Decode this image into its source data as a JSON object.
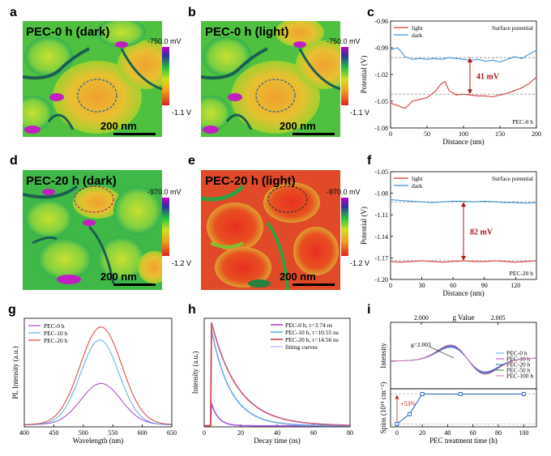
{
  "figure": {
    "panel_labels": [
      "a",
      "b",
      "c",
      "d",
      "e",
      "f",
      "g",
      "h",
      "i"
    ],
    "afm_panels": {
      "a": {
        "title": "PEC-0 h (dark)",
        "scale": "200 nm",
        "cb_max": "-750.0 mV",
        "cb_min": "-1.1 V"
      },
      "b": {
        "title": "PEC-0 h (light)",
        "scale": "200 nm",
        "cb_max": "-750.0 mV",
        "cb_min": "-1.1 V"
      },
      "d": {
        "title": "PEC-20 h (dark)",
        "scale": "200 nm",
        "cb_max": "-970.0 mV",
        "cb_min": "-1.2 V"
      },
      "e": {
        "title": "PEC-20 h (light)",
        "scale": "200 nm",
        "cb_max": "-970.0 mV",
        "cb_min": "-1.2 V"
      }
    }
  },
  "colors": {
    "light": "#d9383a",
    "dark": "#3f94d6",
    "pec0": "#b040d0",
    "pec10": "#58b0e0",
    "pec20": "#d94040",
    "pec50": "#2a9a3a",
    "pec100": "#e070c0",
    "fit": "#9090ff",
    "marker": "#2060c0",
    "arrow": "#b01818",
    "annot": "#c02020"
  },
  "chart_data": [
    {
      "id": "c",
      "type": "line",
      "title": "Surface potential",
      "corner_label": "PEC-0 h",
      "xlabel": "Distance (nm)",
      "ylabel": "Potential (V)",
      "xlim": [
        0,
        200
      ],
      "ylim": [
        -1.08,
        -0.96
      ],
      "xticks": [
        "0",
        "50",
        "100",
        "150",
        "200"
      ],
      "yticks": [
        "-0.96",
        "-0.99",
        "-1.02",
        "-1.05",
        "-1.08"
      ],
      "annotation": "41 mV",
      "ref_lines": [
        -1.001,
        -1.042
      ],
      "series": [
        {
          "name": "light",
          "x": [
            0,
            10,
            20,
            30,
            40,
            50,
            60,
            70,
            75,
            80,
            90,
            100,
            110,
            120,
            130,
            140,
            150,
            160,
            170,
            180,
            190,
            200
          ],
          "y": [
            -1.052,
            -1.055,
            -1.058,
            -1.05,
            -1.048,
            -1.046,
            -1.04,
            -1.03,
            -1.028,
            -1.038,
            -1.043,
            -1.042,
            -1.043,
            -1.044,
            -1.044,
            -1.045,
            -1.043,
            -1.041,
            -1.038,
            -1.035,
            -1.03,
            -1.023
          ]
        },
        {
          "name": "dark",
          "x": [
            0,
            10,
            20,
            30,
            40,
            50,
            60,
            70,
            80,
            90,
            100,
            110,
            120,
            130,
            140,
            150,
            160,
            170,
            180,
            190,
            200
          ],
          "y": [
            -0.992,
            -0.99,
            -1.0,
            -1.003,
            -1.002,
            -1.003,
            -1.002,
            -1.003,
            -1.001,
            -1.002,
            -1.003,
            -1.004,
            -1.003,
            -1.005,
            -1.004,
            -1.006,
            -1.003,
            -1.0,
            -1.002,
            -0.997,
            -0.993
          ]
        }
      ]
    },
    {
      "id": "f",
      "type": "line",
      "title": "Surface potential",
      "corner_label": "PEC-20 h",
      "xlabel": "Distance (nm)",
      "ylabel": "Potential (V)",
      "xlim": [
        0,
        140
      ],
      "ylim": [
        -1.2,
        -1.05
      ],
      "xticks": [
        "0",
        "30",
        "60",
        "90",
        "120"
      ],
      "yticks": [
        "-1.05",
        "-1.08",
        "-1.11",
        "-1.14",
        "-1.17",
        "-1.20"
      ],
      "annotation": "82 mV",
      "ref_lines": [
        -1.092,
        -1.174
      ],
      "series": [
        {
          "name": "light",
          "x": [
            0,
            10,
            20,
            30,
            40,
            50,
            60,
            70,
            80,
            90,
            100,
            110,
            120,
            130,
            140
          ],
          "y": [
            -1.175,
            -1.176,
            -1.175,
            -1.174,
            -1.175,
            -1.176,
            -1.175,
            -1.174,
            -1.175,
            -1.175,
            -1.174,
            -1.175,
            -1.176,
            -1.175,
            -1.174
          ]
        },
        {
          "name": "dark",
          "x": [
            0,
            10,
            20,
            30,
            40,
            50,
            60,
            70,
            80,
            90,
            100,
            110,
            120,
            130,
            140
          ],
          "y": [
            -1.089,
            -1.09,
            -1.091,
            -1.092,
            -1.093,
            -1.092,
            -1.091,
            -1.091,
            -1.092,
            -1.091,
            -1.092,
            -1.093,
            -1.093,
            -1.094,
            -1.093
          ]
        }
      ]
    },
    {
      "id": "g",
      "type": "line",
      "xlabel": "Wavelength (nm)",
      "ylabel": "PL Intensity (a.u.)",
      "xlim": [
        400,
        650
      ],
      "ylim": [
        0,
        1.0
      ],
      "xticks": [
        "400",
        "450",
        "500",
        "550",
        "600",
        "650"
      ],
      "series": [
        {
          "name": "PEC-0 h",
          "peak": 530,
          "amp": 0.38,
          "width": 48
        },
        {
          "name": "PEC-10 h",
          "peak": 528,
          "amp": 0.78,
          "width": 46
        },
        {
          "name": "PEC-20 h",
          "peak": 530,
          "amp": 0.9,
          "width": 50
        }
      ]
    },
    {
      "id": "h",
      "type": "line",
      "xlabel": "Decay time (ns)",
      "ylabel": "Intensity (a.u.)",
      "xlim": [
        0,
        80
      ],
      "ylim": [
        0,
        1.05
      ],
      "xticks": [
        "0",
        "20",
        "40",
        "60",
        "80"
      ],
      "legend_extra": "fitting curves",
      "series": [
        {
          "name": "PEC-0 h, τ=3.74 ns",
          "tau": 3.74,
          "amp": 0.22
        },
        {
          "name": "PEC-10 h, τ=10.55 ns",
          "tau": 10.55,
          "amp": 0.93
        },
        {
          "name": "PEC-20 h, τ=14.56 ns",
          "tau": 14.56,
          "amp": 1.0
        }
      ]
    },
    {
      "id": "i_top",
      "type": "line",
      "xlabel": "g Value",
      "ylabel": "Intensity",
      "xticks": [
        "2.000",
        "2.005"
      ],
      "annotation": "g=2.003",
      "series": [
        {
          "name": "PEC-0 h"
        },
        {
          "name": "PEC-10 h"
        },
        {
          "name": "PEC-20 h"
        },
        {
          "name": "PEC-50 h"
        },
        {
          "name": "PEC-100 h"
        }
      ]
    },
    {
      "id": "i_bottom",
      "type": "line",
      "xlabel": "PEC treatment time (h)",
      "ylabel": "Spins (10¹⁵ cm⁻²)",
      "xlim": [
        -5,
        110
      ],
      "xticks": [
        "0",
        "20",
        "40",
        "60",
        "80",
        "100"
      ],
      "annotation": "+53%",
      "x": [
        0,
        10,
        20,
        50,
        100
      ],
      "values": [
        0.0,
        0.5,
        1.53,
        1.53,
        1.53
      ]
    }
  ]
}
